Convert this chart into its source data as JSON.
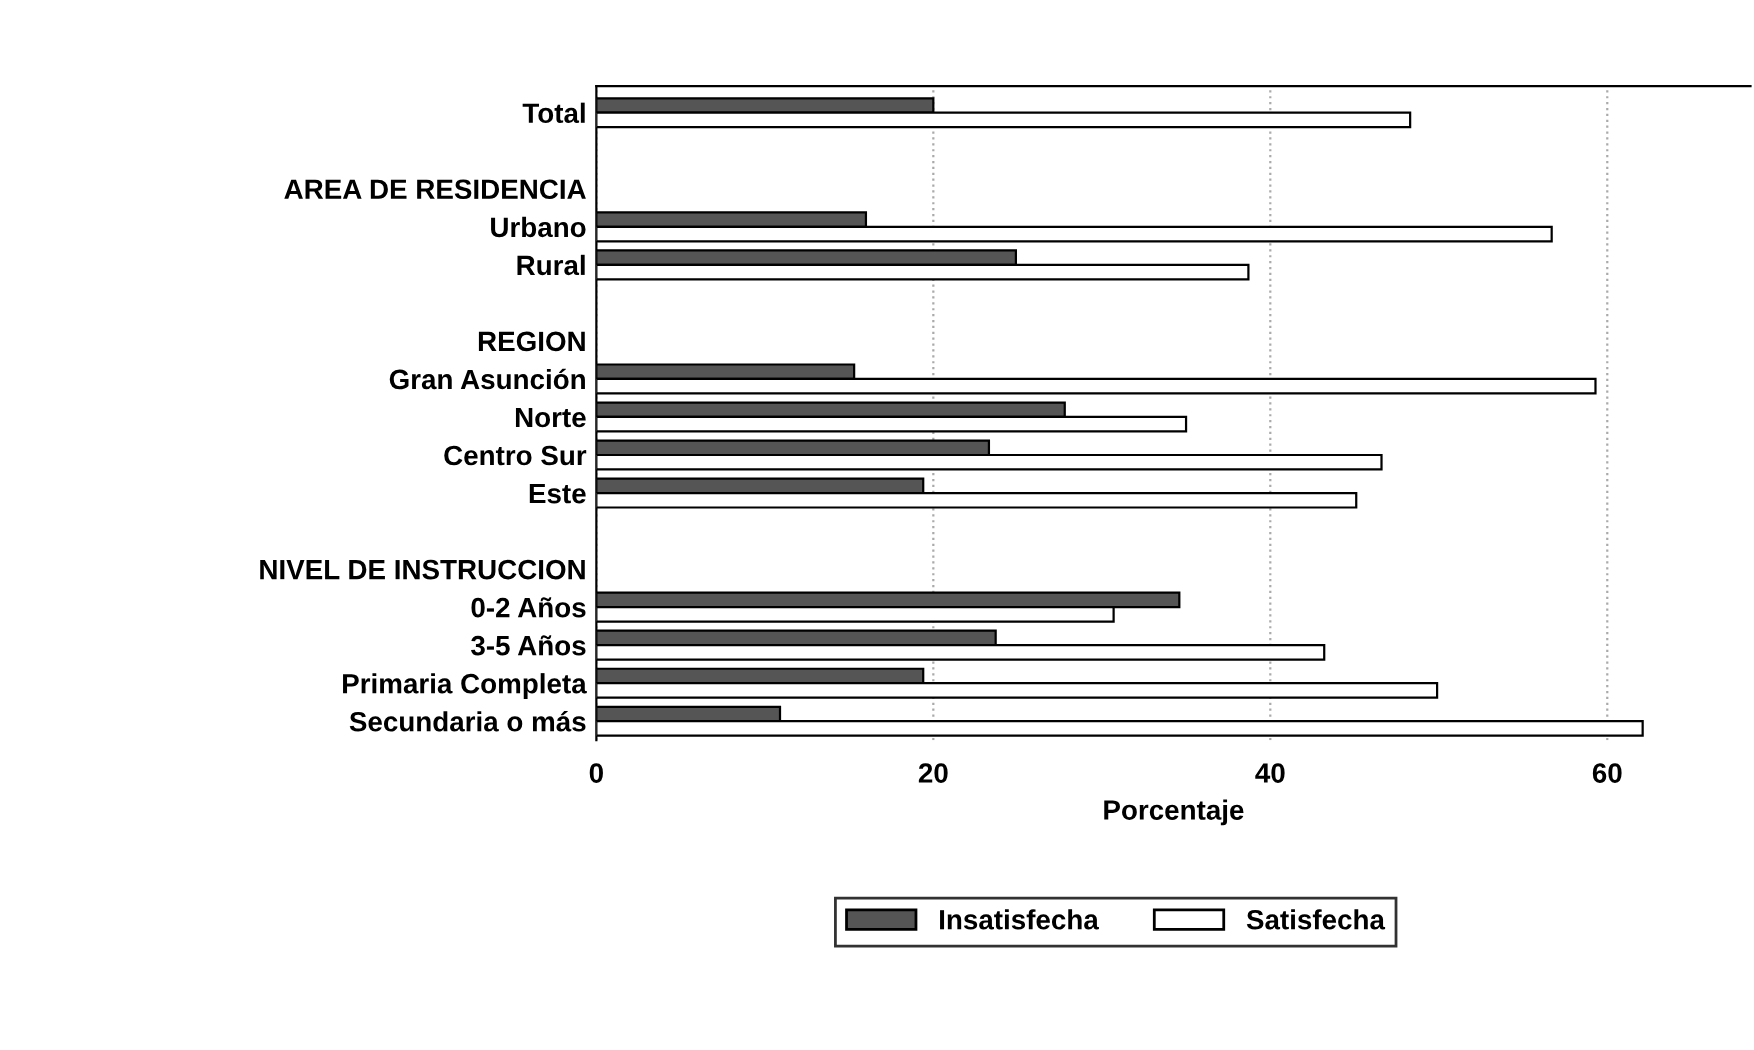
{
  "chart_data": {
    "type": "bar",
    "orientation": "horizontal",
    "xlabel": "Porcentaje",
    "categories": [
      "Total",
      null,
      "AREA DE RESIDENCIA",
      "Urbano",
      "Rural",
      null,
      "REGION",
      "Gran Asunción",
      "Norte",
      "Centro Sur",
      "Este",
      null,
      "NIVEL DE INSTRUCCION",
      "0-2 Años",
      "3-5 Años",
      "Primaria Completa",
      "Secundaria o más"
    ],
    "series": [
      {
        "name": "Insatisfecha",
        "color": "#555555",
        "values": [
          20.0,
          null,
          null,
          16.0,
          24.9,
          null,
          null,
          15.3,
          27.8,
          23.3,
          19.4,
          null,
          null,
          34.6,
          23.7,
          19.4,
          10.9
        ]
      },
      {
        "name": "Satisfecha",
        "color": "#ffffff",
        "values": [
          48.3,
          null,
          null,
          56.7,
          38.7,
          null,
          null,
          59.3,
          35.0,
          46.6,
          45.1,
          null,
          null,
          30.7,
          43.2,
          49.9,
          62.1
        ]
      }
    ],
    "xlim": [
      0,
      68.5
    ],
    "xticks": [
      0,
      20,
      40,
      60
    ],
    "grid": "x",
    "legend": "bottom"
  }
}
